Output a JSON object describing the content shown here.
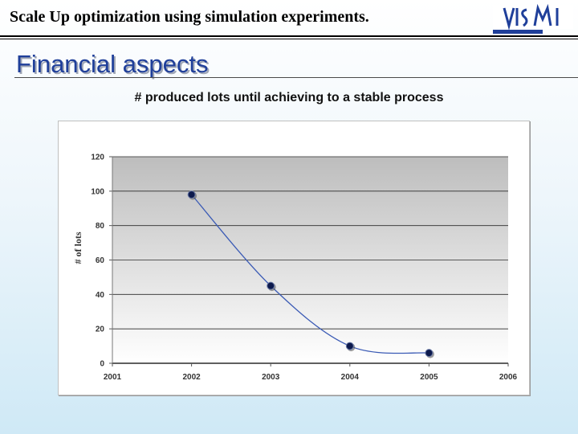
{
  "header": {
    "title": "Scale Up optimization using simulation experiments."
  },
  "section": {
    "title": "Financial aspects"
  },
  "colors": {
    "accent": "#1f3f9a",
    "series": "#3b5bb5",
    "marker": "#0d1a4d"
  },
  "chart_data": {
    "type": "line",
    "title": "# produced lots until achieving to a stable process",
    "xlabel": "",
    "ylabel": "# of lots",
    "xlim": [
      2001,
      2006
    ],
    "ylim": [
      0,
      120
    ],
    "x_ticks": [
      2001,
      2002,
      2003,
      2004,
      2005,
      2006
    ],
    "y_ticks": [
      0,
      20,
      40,
      60,
      80,
      100,
      120
    ],
    "grid": true,
    "legend": "none",
    "series": [
      {
        "x": [
          2002,
          2003,
          2004,
          2005
        ],
        "values": [
          98,
          45,
          10,
          6
        ]
      }
    ]
  }
}
